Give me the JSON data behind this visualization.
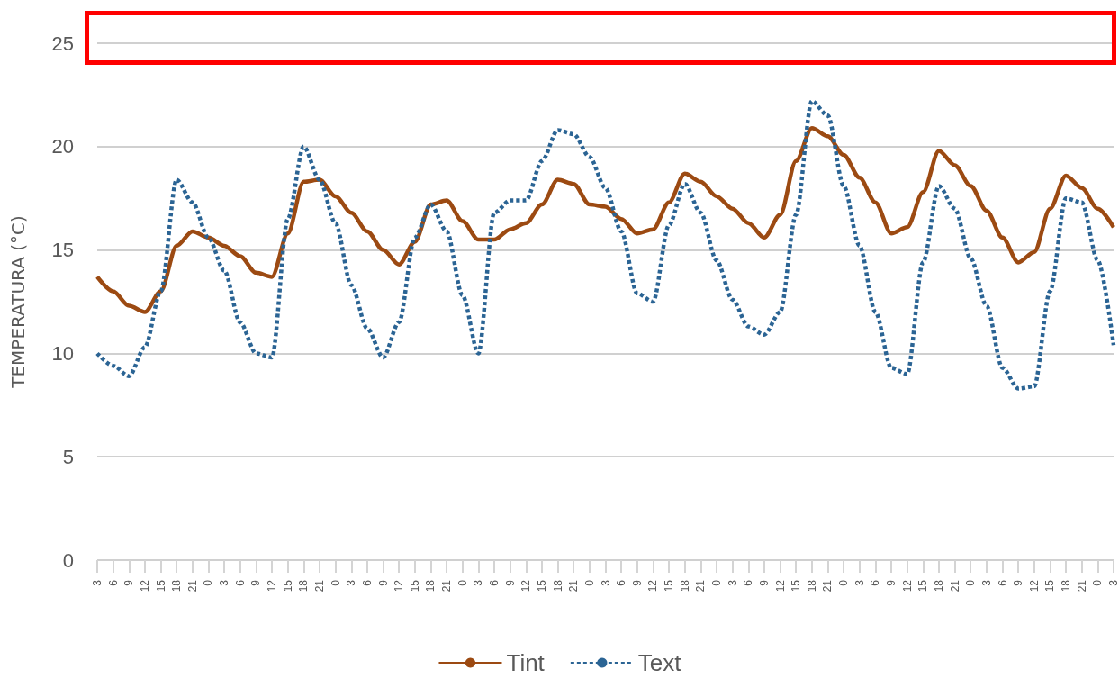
{
  "chart_data": {
    "type": "line",
    "ylabel": "TEMPERATURA (°C)",
    "categories": [
      "3",
      "6",
      "9",
      "12",
      "15",
      "18",
      "21",
      "0",
      "3",
      "6",
      "9",
      "12",
      "15",
      "18",
      "21",
      "0",
      "3",
      "6",
      "9",
      "12",
      "15",
      "18",
      "21",
      "0",
      "3",
      "6",
      "9",
      "12",
      "15",
      "18",
      "21",
      "0",
      "3",
      "6",
      "9",
      "12",
      "15",
      "18",
      "21",
      "0",
      "3",
      "6",
      "9",
      "12",
      "15",
      "18",
      "21",
      "0",
      "3",
      "6",
      "9",
      "12",
      "15",
      "18",
      "21",
      "0",
      "3",
      "6",
      "9",
      "12",
      "15",
      "18",
      "21",
      "0",
      "3"
    ],
    "series": [
      {
        "name": "Tint",
        "color": "#9c4a12",
        "line_style": "solid",
        "values": [
          13.7,
          13.0,
          12.3,
          12.0,
          13.0,
          15.2,
          15.9,
          15.6,
          15.2,
          14.7,
          13.9,
          13.7,
          15.8,
          18.3,
          18.4,
          17.6,
          16.8,
          15.9,
          15.0,
          14.3,
          15.4,
          17.2,
          17.4,
          16.4,
          15.5,
          15.5,
          16.0,
          16.3,
          17.2,
          18.4,
          18.2,
          17.2,
          17.1,
          16.5,
          15.8,
          16.0,
          17.3,
          18.7,
          18.3,
          17.6,
          17.0,
          16.3,
          15.6,
          16.7,
          19.3,
          20.9,
          20.5,
          19.6,
          18.5,
          17.3,
          15.8,
          16.1,
          17.8,
          19.8,
          19.1,
          18.1,
          16.9,
          15.6,
          14.4,
          14.9,
          17.0,
          18.6,
          18.0,
          17.0,
          16.1
        ]
      },
      {
        "name": "Text",
        "color": "#2b6494",
        "line_style": "dashed",
        "values": [
          10.0,
          9.4,
          8.9,
          10.3,
          13.0,
          18.4,
          17.3,
          15.6,
          14.0,
          11.5,
          10.0,
          9.8,
          16.5,
          20.0,
          18.4,
          16.3,
          13.3,
          11.2,
          9.8,
          11.5,
          15.6,
          17.2,
          15.9,
          12.8,
          10.0,
          16.8,
          17.4,
          17.4,
          19.3,
          20.8,
          20.6,
          19.5,
          18.0,
          15.9,
          12.9,
          12.5,
          16.2,
          18.2,
          16.8,
          14.5,
          12.6,
          11.3,
          10.9,
          12.0,
          16.7,
          22.2,
          21.5,
          18.1,
          15.2,
          12.0,
          9.3,
          9.0,
          14.4,
          18.1,
          17.0,
          14.6,
          12.3,
          9.3,
          8.3,
          8.4,
          13.0,
          17.5,
          17.3,
          14.5,
          10.4
        ]
      }
    ],
    "ylim": [
      0,
      25
    ],
    "yticks": [
      0,
      5,
      10,
      15,
      20,
      25
    ],
    "grid": "y",
    "legend": "bottom",
    "marker": "none"
  }
}
